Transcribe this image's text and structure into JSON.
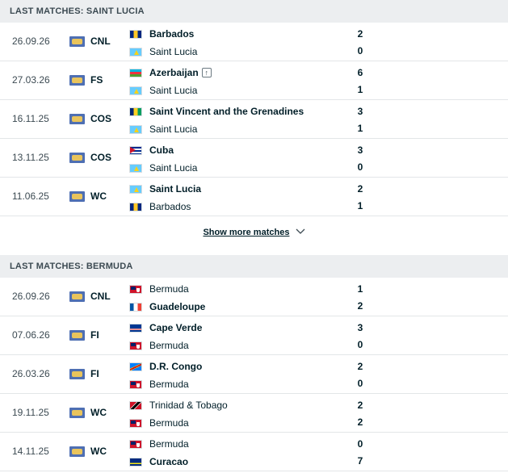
{
  "sections": [
    {
      "title": "LAST MATCHES: SAINT LUCIA",
      "matches": [
        {
          "date": "26.09.26",
          "league": "CNL",
          "home": "Barbados",
          "away": "Saint Lucia",
          "home_score": "2",
          "away_score": "0"
        },
        {
          "date": "27.03.26",
          "league": "FS",
          "home": "Azerbaijan",
          "away": "Saint Lucia",
          "home_score": "6",
          "away_score": "1"
        },
        {
          "date": "16.11.25",
          "league": "COS",
          "home": "Saint Vincent and the Grenadines",
          "away": "Saint Lucia",
          "home_score": "3",
          "away_score": "1"
        },
        {
          "date": "13.11.25",
          "league": "COS",
          "home": "Cuba",
          "away": "Saint Lucia",
          "home_score": "3",
          "away_score": "0"
        },
        {
          "date": "11.06.25",
          "league": "WC",
          "home": "Saint Lucia",
          "away": "Barbados",
          "home_score": "2",
          "away_score": "1"
        }
      ],
      "show_more": "Show more matches"
    },
    {
      "title": "LAST MATCHES: BERMUDA",
      "matches": [
        {
          "date": "26.09.26",
          "league": "CNL",
          "home": "Bermuda",
          "away": "Guadeloupe",
          "home_score": "1",
          "away_score": "2"
        },
        {
          "date": "07.06.26",
          "league": "FI",
          "home": "Cape Verde",
          "away": "Bermuda",
          "home_score": "3",
          "away_score": "0"
        },
        {
          "date": "26.03.26",
          "league": "FI",
          "home": "D.R. Congo",
          "away": "Bermuda",
          "home_score": "2",
          "away_score": "0"
        },
        {
          "date": "19.11.25",
          "league": "WC",
          "home": "Trinidad & Tobago",
          "away": "Bermuda",
          "home_score": "2",
          "away_score": "2"
        },
        {
          "date": "14.11.25",
          "league": "WC",
          "home": "Bermuda",
          "away": "Curacao",
          "home_score": "0",
          "away_score": "7"
        }
      ]
    }
  ],
  "colors": {
    "header_bg": "#eceef0",
    "text": "#001e28",
    "muted": "#3c4a52",
    "divider": "#e3e6e8"
  }
}
